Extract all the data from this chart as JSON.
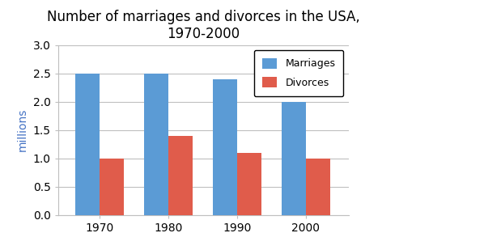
{
  "title": "Number of marriages and divorces in the USA,\n1970-2000",
  "years": [
    "1970",
    "1980",
    "1990",
    "2000"
  ],
  "marriages": [
    2.5,
    2.5,
    2.4,
    2.0
  ],
  "divorces": [
    1.0,
    1.4,
    1.1,
    1.0
  ],
  "marriage_color": "#5B9BD5",
  "divorce_color": "#E05C4B",
  "ylabel": "millions",
  "ylabel_color": "#4472C4",
  "ylim": [
    0,
    3
  ],
  "yticks": [
    0,
    0.5,
    1.0,
    1.5,
    2.0,
    2.5,
    3.0
  ],
  "legend_labels": [
    "Marriages",
    "Divorces"
  ],
  "bar_width": 0.35,
  "background_color": "#FFFFFF",
  "grid_color": "#BFBFBF",
  "title_fontsize": 12,
  "tick_fontsize": 10,
  "ylabel_fontsize": 10
}
